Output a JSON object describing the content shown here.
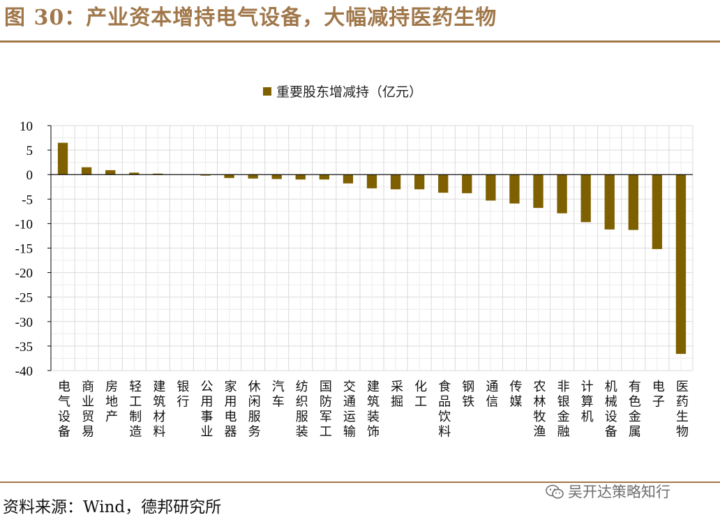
{
  "figure": {
    "title": "图 30：产业资本增持电气设备，大幅减持医药生物",
    "source": "资料来源：Wind，德邦研究所",
    "watermark": "吴开达策略知行",
    "watermark_icon": "wechat-icon"
  },
  "colors": {
    "bar": "#7f6000",
    "accent": "#a0774a",
    "grid": "#d9d9d9",
    "axis": "#000000"
  },
  "chart_data": {
    "type": "bar",
    "title": "",
    "legend": [
      "重要股东增减持（亿元）"
    ],
    "legend_position": "top-center",
    "xlabel": "",
    "ylabel": "",
    "ylim": [
      -40,
      10
    ],
    "yticks": [
      10,
      5,
      0,
      -5,
      -10,
      -15,
      -20,
      -25,
      -30,
      -35,
      -40
    ],
    "grid": true,
    "categories": [
      "电气设备",
      "商业贸易",
      "房地产",
      "轻工制造",
      "建筑材料",
      "银行",
      "公用事业",
      "家用电器",
      "休闲服务",
      "汽车",
      "纺织服装",
      "国防军工",
      "交通运输",
      "建筑装饰",
      "采掘",
      "化工",
      "食品饮料",
      "钢铁",
      "通信",
      "传媒",
      "农林牧渔",
      "非银金融",
      "计算机",
      "机械设备",
      "有色金属",
      "电子",
      "医药生物"
    ],
    "series": [
      {
        "name": "重要股东增减持（亿元）",
        "values": [
          6.5,
          1.5,
          0.9,
          0.4,
          0.2,
          0.0,
          -0.2,
          -0.7,
          -0.8,
          -0.9,
          -1.0,
          -1.0,
          -1.8,
          -2.8,
          -3.0,
          -3.0,
          -3.7,
          -3.8,
          -5.3,
          -5.9,
          -6.8,
          -7.9,
          -9.7,
          -11.2,
          -11.3,
          -15.2,
          -36.6
        ]
      }
    ]
  }
}
